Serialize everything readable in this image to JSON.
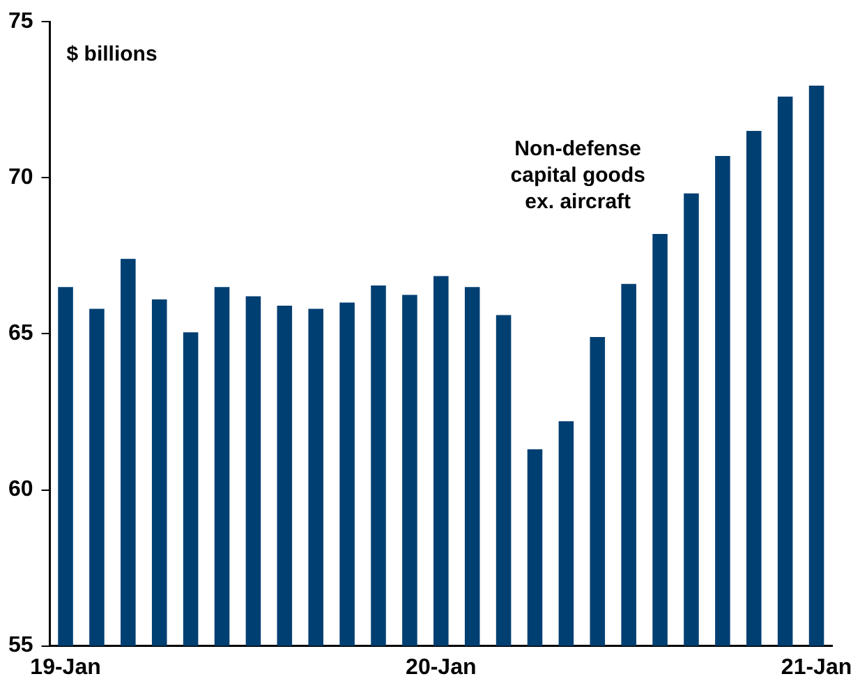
{
  "chart_data": {
    "type": "bar",
    "categories": [
      "19-Jan",
      null,
      null,
      null,
      null,
      null,
      null,
      null,
      null,
      null,
      null,
      null,
      "20-Jan",
      null,
      null,
      null,
      null,
      null,
      null,
      null,
      null,
      null,
      null,
      null,
      "21-Jan"
    ],
    "values": [
      66.5,
      65.8,
      67.4,
      66.1,
      65.05,
      66.5,
      66.2,
      65.9,
      65.8,
      66.0,
      66.55,
      66.25,
      66.85,
      66.5,
      65.6,
      61.3,
      62.2,
      64.9,
      66.6,
      68.2,
      69.5,
      70.7,
      71.5,
      72.6,
      72.95
    ],
    "color": "#003f72",
    "ylim": [
      55,
      75
    ],
    "yticks": [
      55,
      60,
      65,
      70,
      75
    ],
    "grid": false,
    "legend": false,
    "annotations": [
      "$ billions",
      "Non-defense\ncapital goods\nex. aircraft"
    ]
  }
}
